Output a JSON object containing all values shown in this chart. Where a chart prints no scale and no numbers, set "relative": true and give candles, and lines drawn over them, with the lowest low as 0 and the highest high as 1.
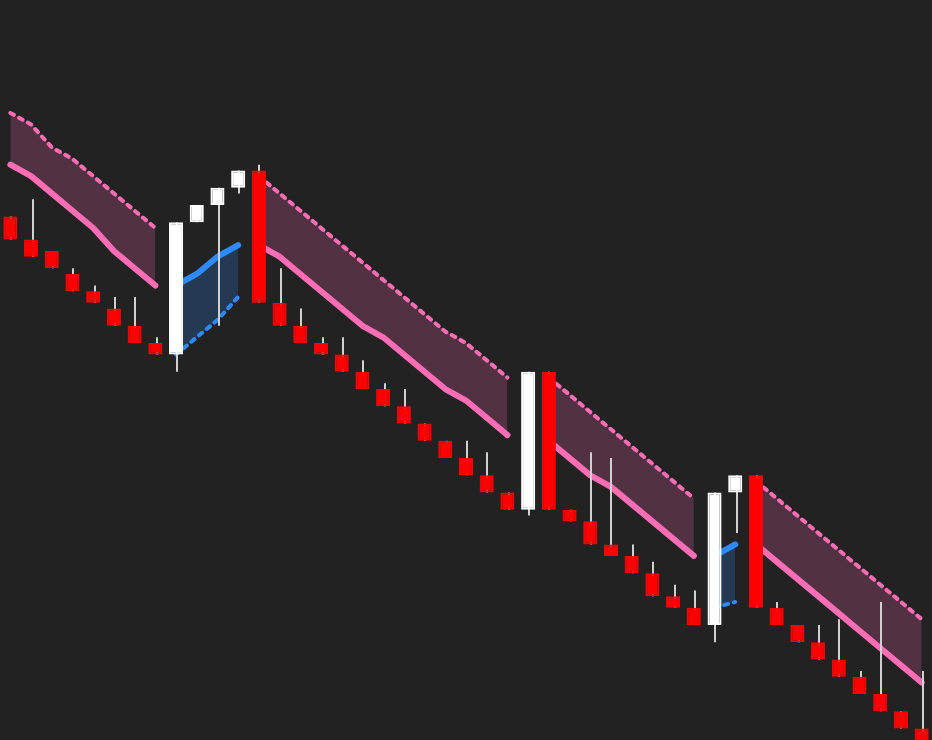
{
  "chart_data": {
    "type": "candlestick",
    "relative": true,
    "categories": [
      null,
      null,
      null,
      null,
      null,
      null,
      null,
      null,
      null,
      null,
      null,
      null,
      null,
      null,
      null,
      null,
      null,
      null,
      null,
      null,
      null,
      null,
      null,
      null,
      null,
      null,
      null,
      null,
      null,
      null,
      null,
      null,
      null,
      null,
      null,
      null,
      null,
      null,
      null,
      null,
      null,
      null,
      null,
      null,
      null
    ],
    "ohlc": [
      [
        0.91,
        0.91,
        0.87,
        0.87
      ],
      [
        0.87,
        0.94,
        0.84,
        0.84
      ],
      [
        0.85,
        0.85,
        0.82,
        0.82
      ],
      [
        0.81,
        0.82,
        0.78,
        0.78
      ],
      [
        0.78,
        0.79,
        0.76,
        0.76
      ],
      [
        0.75,
        0.77,
        0.72,
        0.72
      ],
      [
        0.72,
        0.77,
        0.69,
        0.69
      ],
      [
        0.69,
        0.7,
        0.67,
        0.67
      ],
      [
        0.67,
        0.9,
        0.64,
        0.9
      ],
      [
        0.9,
        0.93,
        0.9,
        0.93
      ],
      [
        0.93,
        0.96,
        0.72,
        0.96
      ],
      [
        0.96,
        0.99,
        0.95,
        0.99
      ],
      [
        0.99,
        1,
        0.76,
        0.76
      ],
      [
        0.76,
        0.82,
        0.72,
        0.72
      ],
      [
        0.72,
        0.75,
        0.69,
        0.69
      ],
      [
        0.69,
        0.7,
        0.67,
        0.67
      ],
      [
        0.67,
        0.7,
        0.64,
        0.64
      ],
      [
        0.64,
        0.66,
        0.61,
        0.61
      ],
      [
        0.61,
        0.62,
        0.58,
        0.58
      ],
      [
        0.58,
        0.61,
        0.55,
        0.55
      ],
      [
        0.55,
        0.55,
        0.52,
        0.52
      ],
      [
        0.52,
        0.52,
        0.49,
        0.49
      ],
      [
        0.49,
        0.52,
        0.46,
        0.46
      ],
      [
        0.46,
        0.5,
        0.43,
        0.43
      ],
      [
        0.43,
        0.43,
        0.4,
        0.4
      ],
      [
        0.4,
        0.64,
        0.39,
        0.64
      ],
      [
        0.64,
        0.64,
        0.4,
        0.4
      ],
      [
        0.4,
        0.4,
        0.38,
        0.38
      ],
      [
        0.38,
        0.5,
        0.34,
        0.34
      ],
      [
        0.34,
        0.49,
        0.32,
        0.32
      ],
      [
        0.32,
        0.34,
        0.29,
        0.29
      ],
      [
        0.29,
        0.31,
        0.25,
        0.25
      ],
      [
        0.25,
        0.27,
        0.23,
        0.23
      ],
      [
        0.23,
        0.26,
        0.2,
        0.2
      ],
      [
        0.2,
        0.43,
        0.17,
        0.43
      ],
      [
        0.43,
        0.46,
        0.36,
        0.46
      ],
      [
        0.46,
        0.46,
        0.23,
        0.23
      ],
      [
        0.23,
        0.24,
        0.2,
        0.2
      ],
      [
        0.2,
        0.2,
        0.17,
        0.17
      ],
      [
        0.17,
        0.2,
        0.14,
        0.14
      ],
      [
        0.14,
        0.21,
        0.11,
        0.11
      ],
      [
        0.11,
        0.12,
        0.08,
        0.08
      ],
      [
        0.08,
        0.24,
        0.05,
        0.05
      ],
      [
        0.05,
        0.05,
        0.02,
        0.02
      ],
      [
        0.02,
        0.12,
        0,
        0
      ]
    ],
    "colors": [
      "#ff0000",
      "#ff0000",
      "#ff0000",
      "#ff0000",
      "#ff0000",
      "#ff0000",
      "#ff0000",
      "#ff0000",
      "#ffffff",
      "#ffffff",
      "#ffffff",
      "#ffffff",
      "#ff0000",
      "#ff0000",
      "#ff0000",
      "#ff0000",
      "#ff0000",
      "#ff0000",
      "#ff0000",
      "#ff0000",
      "#ff0000",
      "#ff0000",
      "#ff0000",
      "#ff0000",
      "#ff0000",
      "#ffffff",
      "#ff0000",
      "#ff0000",
      "#ff0000",
      "#ff0000",
      "#ff0000",
      "#ff0000",
      "#ff0000",
      "#ff0000",
      "#ffffff",
      "#ffffff",
      "#ff0000",
      "#ff0000",
      "#ff0000",
      "#ff0000",
      "#ff0000",
      "#ff0000",
      "#ff0000",
      "#ff0000",
      "#ff0000"
    ],
    "series": [
      {
        "type": "line",
        "color": "#ff6eb4",
        "line_style": "dotted",
        "values": [
          1.09,
          1.07,
          1.03,
          1.01,
          0.98,
          0.95,
          0.92,
          0.89,
          null,
          null,
          null,
          null,
          0.98,
          0.95,
          0.92,
          0.89,
          0.86,
          0.83,
          0.8,
          0.77,
          0.74,
          0.71,
          0.69,
          0.66,
          0.63,
          null,
          0.63,
          0.6,
          0.57,
          0.54,
          0.51,
          0.48,
          0.45,
          0.42,
          null,
          null,
          0.45,
          0.42,
          0.39,
          0.36,
          0.33,
          0.3,
          0.27,
          0.24,
          0.21
        ]
      },
      {
        "type": "line",
        "color": "#2e8bff",
        "line_style": "dotted",
        "values": [
          null,
          null,
          null,
          null,
          null,
          null,
          null,
          null,
          0.67,
          0.7,
          0.73,
          0.77,
          null,
          null,
          null,
          null,
          null,
          null,
          null,
          null,
          null,
          null,
          null,
          null,
          null,
          null,
          null,
          null,
          null,
          null,
          null,
          null,
          null,
          null,
          0.23,
          0.24,
          null,
          null,
          null,
          null,
          null,
          null,
          null,
          null,
          null
        ]
      },
      {
        "type": "line",
        "color": "#ff6eb4",
        "values": [
          1,
          0.98,
          0.95,
          0.92,
          0.89,
          0.85,
          0.82,
          0.79,
          null,
          null,
          null,
          null,
          0.86,
          0.84,
          0.81,
          0.78,
          0.75,
          0.72,
          0.7,
          0.67,
          0.64,
          0.61,
          0.59,
          0.56,
          0.53,
          null,
          0.52,
          0.49,
          0.46,
          0.44,
          0.41,
          0.38,
          0.35,
          0.32,
          null,
          null,
          0.34,
          0.31,
          0.28,
          0.25,
          0.22,
          0.19,
          0.16,
          0.13,
          0.1
        ],
        "lower": [
          1,
          0.98,
          0.95,
          0.92,
          0.89,
          0.85,
          0.82,
          0.79,
          null,
          null,
          null,
          null,
          0.86,
          0.84,
          0.81,
          0.78,
          0.75,
          0.72,
          0.7,
          0.67,
          0.64,
          0.61,
          0.59,
          0.56,
          0.53,
          null,
          0.52,
          0.49,
          0.46,
          0.44,
          0.41,
          0.38,
          0.35,
          0.32,
          null,
          null,
          0.34,
          0.31,
          0.28,
          0.25,
          0.22,
          0.19,
          0.16,
          0.13,
          0.1
        ],
        "upper": [
          1.09,
          1.07,
          1.03,
          1.01,
          0.98,
          0.95,
          0.92,
          0.89,
          null,
          null,
          null,
          null,
          0.98,
          0.95,
          0.92,
          0.89,
          0.86,
          0.83,
          0.8,
          0.77,
          0.74,
          0.71,
          0.69,
          0.66,
          0.63,
          null,
          0.63,
          0.6,
          0.57,
          0.54,
          0.51,
          0.48,
          0.45,
          0.42,
          null,
          null,
          0.45,
          0.42,
          0.39,
          0.36,
          0.33,
          0.3,
          0.27,
          0.24,
          0.21
        ]
      },
      {
        "type": "line",
        "color": "#2e8bff",
        "values": [
          null,
          null,
          null,
          null,
          null,
          null,
          null,
          null,
          0.79,
          0.81,
          0.84,
          0.86,
          null,
          null,
          null,
          null,
          null,
          null,
          null,
          null,
          null,
          null,
          null,
          null,
          null,
          null,
          null,
          null,
          null,
          null,
          null,
          null,
          null,
          null,
          0.32,
          0.34,
          null,
          null,
          null,
          null,
          null,
          null,
          null,
          null,
          null
        ],
        "upper": [
          null,
          null,
          null,
          null,
          null,
          null,
          null,
          null,
          0.79,
          0.81,
          0.84,
          0.86,
          null,
          null,
          null,
          null,
          null,
          null,
          null,
          null,
          null,
          null,
          null,
          null,
          null,
          null,
          null,
          null,
          null,
          null,
          null,
          null,
          null,
          null,
          0.32,
          0.34,
          null,
          null,
          null,
          null,
          null,
          null,
          null,
          null,
          null
        ],
        "lower": [
          null,
          null,
          null,
          null,
          null,
          null,
          null,
          null,
          0.67,
          0.7,
          0.73,
          0.77,
          null,
          null,
          null,
          null,
          null,
          null,
          null,
          null,
          null,
          null,
          null,
          null,
          null,
          null,
          null,
          null,
          null,
          null,
          null,
          null,
          null,
          null,
          0.23,
          0.24,
          null,
          null,
          null,
          null,
          null,
          null,
          null,
          null,
          null
        ]
      }
    ]
  }
}
